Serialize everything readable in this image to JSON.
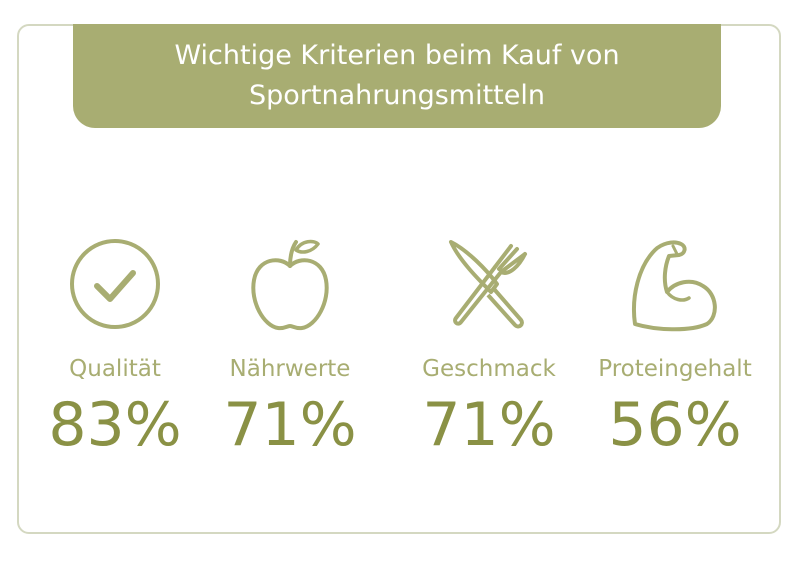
{
  "colors": {
    "accent": "#a8ad72",
    "value_text": "#8a9145",
    "border": "#d4d8c1"
  },
  "chart_data": {
    "type": "table",
    "title_lines": [
      "Wichtige Kriterien beim Kauf von",
      "Sportnahrungsmitteln"
    ],
    "categories": [
      "Qualität",
      "Nährwerte",
      "Geschmack",
      "Proteingehalt"
    ],
    "values": [
      83,
      71,
      71,
      56
    ],
    "value_labels": [
      "83%",
      "71%",
      "71%",
      "56%"
    ],
    "icons": [
      "checkmark-circle-icon",
      "apple-icon",
      "fork-knife-icon",
      "flexed-arm-icon"
    ]
  }
}
